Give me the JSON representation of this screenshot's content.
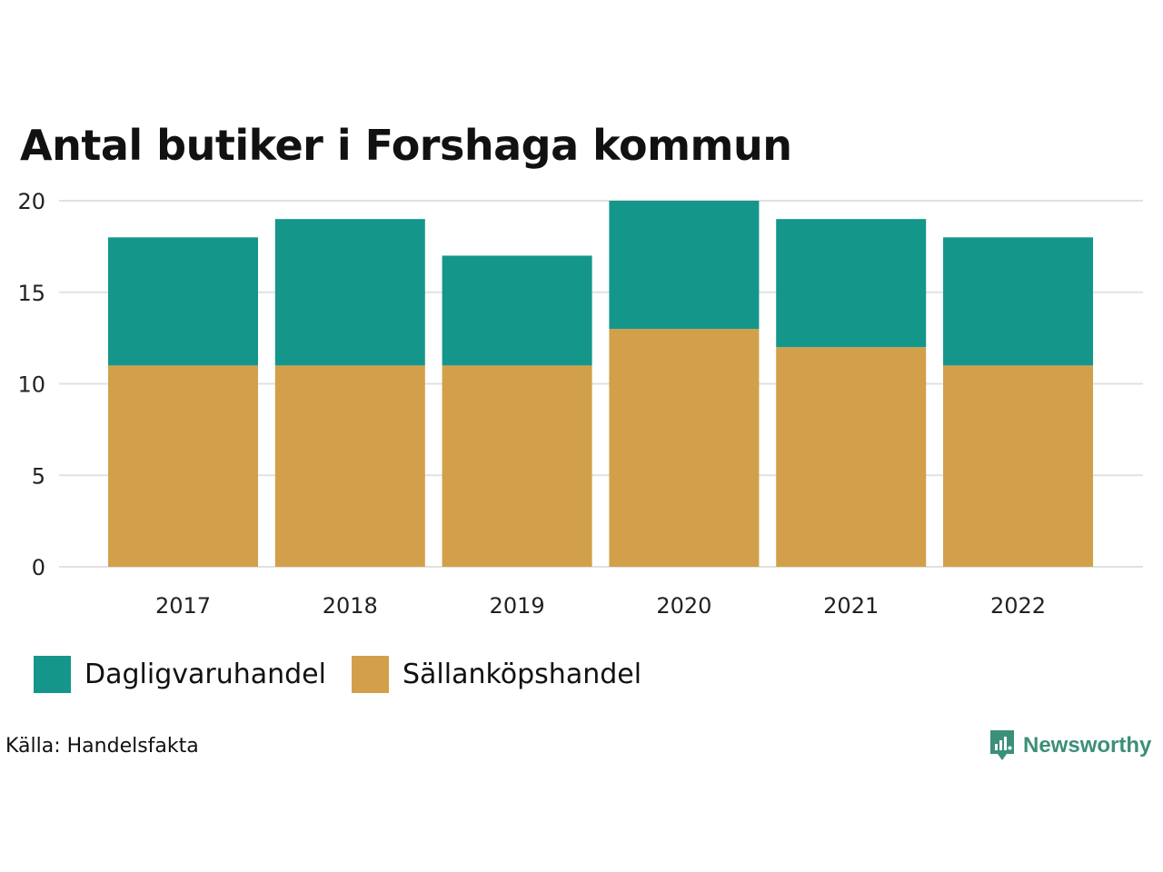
{
  "chart_data": {
    "type": "bar",
    "stacked": true,
    "title": "Antal butiker i Forshaga kommun",
    "categories": [
      "2017",
      "2018",
      "2019",
      "2020",
      "2021",
      "2022"
    ],
    "series": [
      {
        "name": "Sällanköpshandel",
        "color": "#d2a04a",
        "values": [
          11,
          11,
          11,
          13,
          12,
          11
        ]
      },
      {
        "name": "Dagligvaruhandel",
        "color": "#15968a",
        "values": [
          7,
          8,
          6,
          7,
          7,
          7
        ]
      }
    ],
    "ylim": [
      0,
      20
    ],
    "yticks": [
      "0",
      "5",
      "10",
      "15",
      "20"
    ],
    "grid": true,
    "legend": "bottom-left",
    "xlabel": "",
    "ylabel": ""
  },
  "legend": [
    {
      "name": "Dagligvaruhandel",
      "color": "#15968a"
    },
    {
      "name": "Sällanköpshandel",
      "color": "#d2a04a"
    }
  ],
  "source": "Källa: Handelsfakta",
  "brand": {
    "name": "Newsworthy",
    "color": "#3c8f7a"
  }
}
